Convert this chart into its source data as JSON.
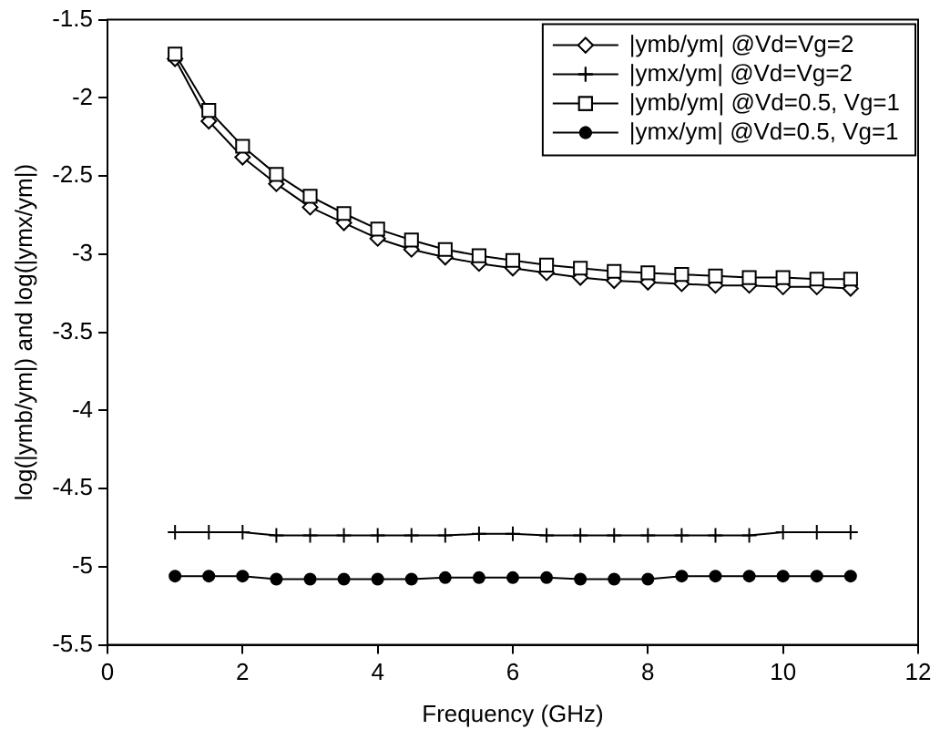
{
  "chart_data": {
    "type": "line",
    "xlabel": "Frequency (GHz)",
    "ylabel": "log(|ymb/ym|) and log(|ymx/ym|)",
    "x": [
      1,
      1.5,
      2,
      2.5,
      3,
      3.5,
      4,
      4.5,
      5,
      5.5,
      6,
      6.5,
      7,
      7.5,
      8,
      8.5,
      9,
      9.5,
      10,
      10.5,
      11
    ],
    "xlim": [
      0,
      12
    ],
    "xticks": [
      0,
      2,
      4,
      6,
      8,
      10,
      12
    ],
    "ylim": [
      -5.5,
      -1.5
    ],
    "yticks": [
      -5.5,
      -5,
      -4.5,
      -4,
      -3.5,
      -3,
      -2.5,
      -2,
      -1.5
    ],
    "grid": false,
    "legend": "top right",
    "line_style": "solid",
    "series": [
      {
        "name": "|ymb/ym| @Vd=Vg=2",
        "color": "#000000",
        "marker": "diamond",
        "values": [
          -1.75,
          -2.15,
          -2.38,
          -2.55,
          -2.7,
          -2.8,
          -2.9,
          -2.97,
          -3.02,
          -3.06,
          -3.09,
          -3.12,
          -3.15,
          -3.17,
          -3.18,
          -3.19,
          -3.2,
          -3.2,
          -3.21,
          -3.21,
          -3.22
        ]
      },
      {
        "name": "|ymx/ym| @Vd=Vg=2",
        "color": "#000000",
        "marker": "cross",
        "values": [
          -4.78,
          -4.78,
          -4.78,
          -4.8,
          -4.8,
          -4.8,
          -4.8,
          -4.8,
          -4.8,
          -4.79,
          -4.79,
          -4.8,
          -4.8,
          -4.8,
          -4.8,
          -4.8,
          -4.8,
          -4.8,
          -4.78,
          -4.78,
          -4.78
        ]
      },
      {
        "name": "|ymb/ym| @Vd=0.5, Vg=1",
        "color": "#000000",
        "marker": "square",
        "values": [
          -1.72,
          -2.08,
          -2.31,
          -2.49,
          -2.63,
          -2.74,
          -2.84,
          -2.91,
          -2.97,
          -3.01,
          -3.04,
          -3.07,
          -3.09,
          -3.11,
          -3.12,
          -3.13,
          -3.14,
          -3.15,
          -3.15,
          -3.16,
          -3.16
        ]
      },
      {
        "name": "|ymx/ym| @Vd=0.5, Vg=1",
        "color": "#000000",
        "marker": "circle",
        "values": [
          -5.06,
          -5.06,
          -5.06,
          -5.08,
          -5.08,
          -5.08,
          -5.08,
          -5.08,
          -5.07,
          -5.07,
          -5.07,
          -5.07,
          -5.08,
          -5.08,
          -5.08,
          -5.06,
          -5.06,
          -5.06,
          -5.06,
          -5.06,
          -5.06
        ]
      }
    ]
  }
}
